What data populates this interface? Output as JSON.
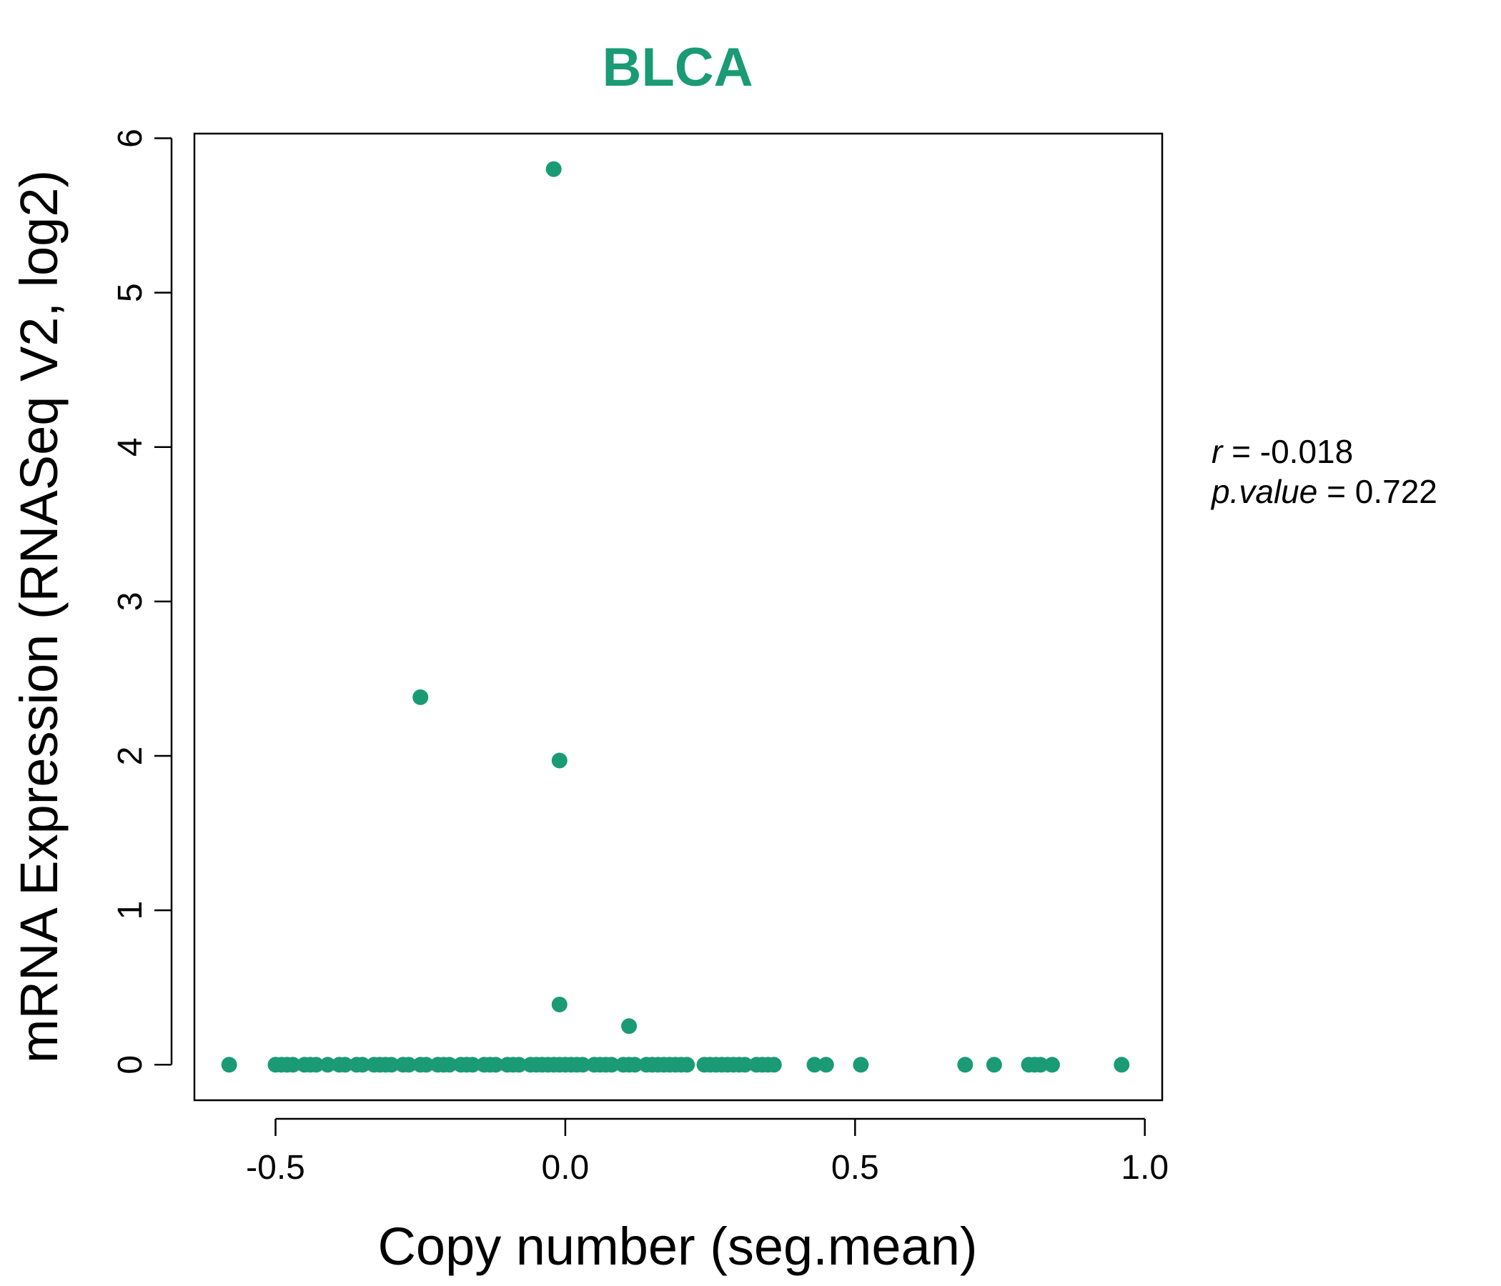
{
  "chart_data": {
    "type": "scatter",
    "title": "BLCA",
    "xlabel": "Copy number (seg.mean)",
    "ylabel": "mRNA Expression (RNASeq V2, log2)",
    "xlim": [
      -0.64,
      1.03
    ],
    "ylim": [
      -0.23,
      6.03
    ],
    "x_ticks": [
      -0.5,
      0.0,
      0.5,
      1.0
    ],
    "x_tick_labels": [
      "-0.5",
      "0.0",
      "0.5",
      "1.0"
    ],
    "y_ticks": [
      0,
      1,
      2,
      3,
      4,
      5,
      6
    ],
    "y_tick_labels": [
      "0",
      "1",
      "2",
      "3",
      "4",
      "5",
      "6"
    ],
    "grid": false,
    "colors": {
      "points": "#1a9b75",
      "title": "#1a9b75"
    },
    "stats": {
      "r_label": "r",
      "r_value": "-0.018",
      "p_label": "p.value",
      "p_value": "0.722"
    },
    "points": [
      {
        "x": -0.02,
        "y": 5.8
      },
      {
        "x": -0.25,
        "y": 2.38
      },
      {
        "x": -0.01,
        "y": 1.97
      },
      {
        "x": -0.01,
        "y": 0.39
      },
      {
        "x": 0.11,
        "y": 0.25
      },
      {
        "x": -0.58,
        "y": 0
      },
      {
        "x": -0.5,
        "y": 0
      },
      {
        "x": -0.49,
        "y": 0
      },
      {
        "x": -0.48,
        "y": 0
      },
      {
        "x": -0.47,
        "y": 0
      },
      {
        "x": -0.45,
        "y": 0
      },
      {
        "x": -0.44,
        "y": 0
      },
      {
        "x": -0.43,
        "y": 0
      },
      {
        "x": -0.41,
        "y": 0
      },
      {
        "x": -0.39,
        "y": 0
      },
      {
        "x": -0.38,
        "y": 0
      },
      {
        "x": -0.36,
        "y": 0
      },
      {
        "x": -0.35,
        "y": 0
      },
      {
        "x": -0.33,
        "y": 0
      },
      {
        "x": -0.32,
        "y": 0
      },
      {
        "x": -0.31,
        "y": 0
      },
      {
        "x": -0.3,
        "y": 0
      },
      {
        "x": -0.28,
        "y": 0
      },
      {
        "x": -0.27,
        "y": 0
      },
      {
        "x": -0.25,
        "y": 0
      },
      {
        "x": -0.24,
        "y": 0
      },
      {
        "x": -0.22,
        "y": 0
      },
      {
        "x": -0.21,
        "y": 0
      },
      {
        "x": -0.2,
        "y": 0
      },
      {
        "x": -0.18,
        "y": 0
      },
      {
        "x": -0.17,
        "y": 0
      },
      {
        "x": -0.16,
        "y": 0
      },
      {
        "x": -0.14,
        "y": 0
      },
      {
        "x": -0.13,
        "y": 0
      },
      {
        "x": -0.12,
        "y": 0
      },
      {
        "x": -0.1,
        "y": 0
      },
      {
        "x": -0.09,
        "y": 0
      },
      {
        "x": -0.08,
        "y": 0
      },
      {
        "x": -0.06,
        "y": 0
      },
      {
        "x": -0.05,
        "y": 0
      },
      {
        "x": -0.04,
        "y": 0
      },
      {
        "x": -0.03,
        "y": 0
      },
      {
        "x": -0.02,
        "y": 0
      },
      {
        "x": -0.01,
        "y": 0
      },
      {
        "x": 0.0,
        "y": 0
      },
      {
        "x": 0.01,
        "y": 0
      },
      {
        "x": 0.02,
        "y": 0
      },
      {
        "x": 0.03,
        "y": 0
      },
      {
        "x": 0.05,
        "y": 0
      },
      {
        "x": 0.06,
        "y": 0
      },
      {
        "x": 0.07,
        "y": 0
      },
      {
        "x": 0.08,
        "y": 0
      },
      {
        "x": 0.1,
        "y": 0
      },
      {
        "x": 0.11,
        "y": 0
      },
      {
        "x": 0.12,
        "y": 0
      },
      {
        "x": 0.14,
        "y": 0
      },
      {
        "x": 0.15,
        "y": 0
      },
      {
        "x": 0.16,
        "y": 0
      },
      {
        "x": 0.17,
        "y": 0
      },
      {
        "x": 0.18,
        "y": 0
      },
      {
        "x": 0.19,
        "y": 0
      },
      {
        "x": 0.2,
        "y": 0
      },
      {
        "x": 0.21,
        "y": 0
      },
      {
        "x": 0.24,
        "y": 0
      },
      {
        "x": 0.25,
        "y": 0
      },
      {
        "x": 0.26,
        "y": 0
      },
      {
        "x": 0.27,
        "y": 0
      },
      {
        "x": 0.28,
        "y": 0
      },
      {
        "x": 0.29,
        "y": 0
      },
      {
        "x": 0.3,
        "y": 0
      },
      {
        "x": 0.31,
        "y": 0
      },
      {
        "x": 0.33,
        "y": 0
      },
      {
        "x": 0.34,
        "y": 0
      },
      {
        "x": 0.35,
        "y": 0
      },
      {
        "x": 0.36,
        "y": 0
      },
      {
        "x": 0.43,
        "y": 0
      },
      {
        "x": 0.45,
        "y": 0
      },
      {
        "x": 0.51,
        "y": 0
      },
      {
        "x": 0.69,
        "y": 0
      },
      {
        "x": 0.74,
        "y": 0
      },
      {
        "x": 0.8,
        "y": 0
      },
      {
        "x": 0.81,
        "y": 0
      },
      {
        "x": 0.82,
        "y": 0
      },
      {
        "x": 0.84,
        "y": 0
      },
      {
        "x": 0.96,
        "y": 0
      }
    ]
  }
}
